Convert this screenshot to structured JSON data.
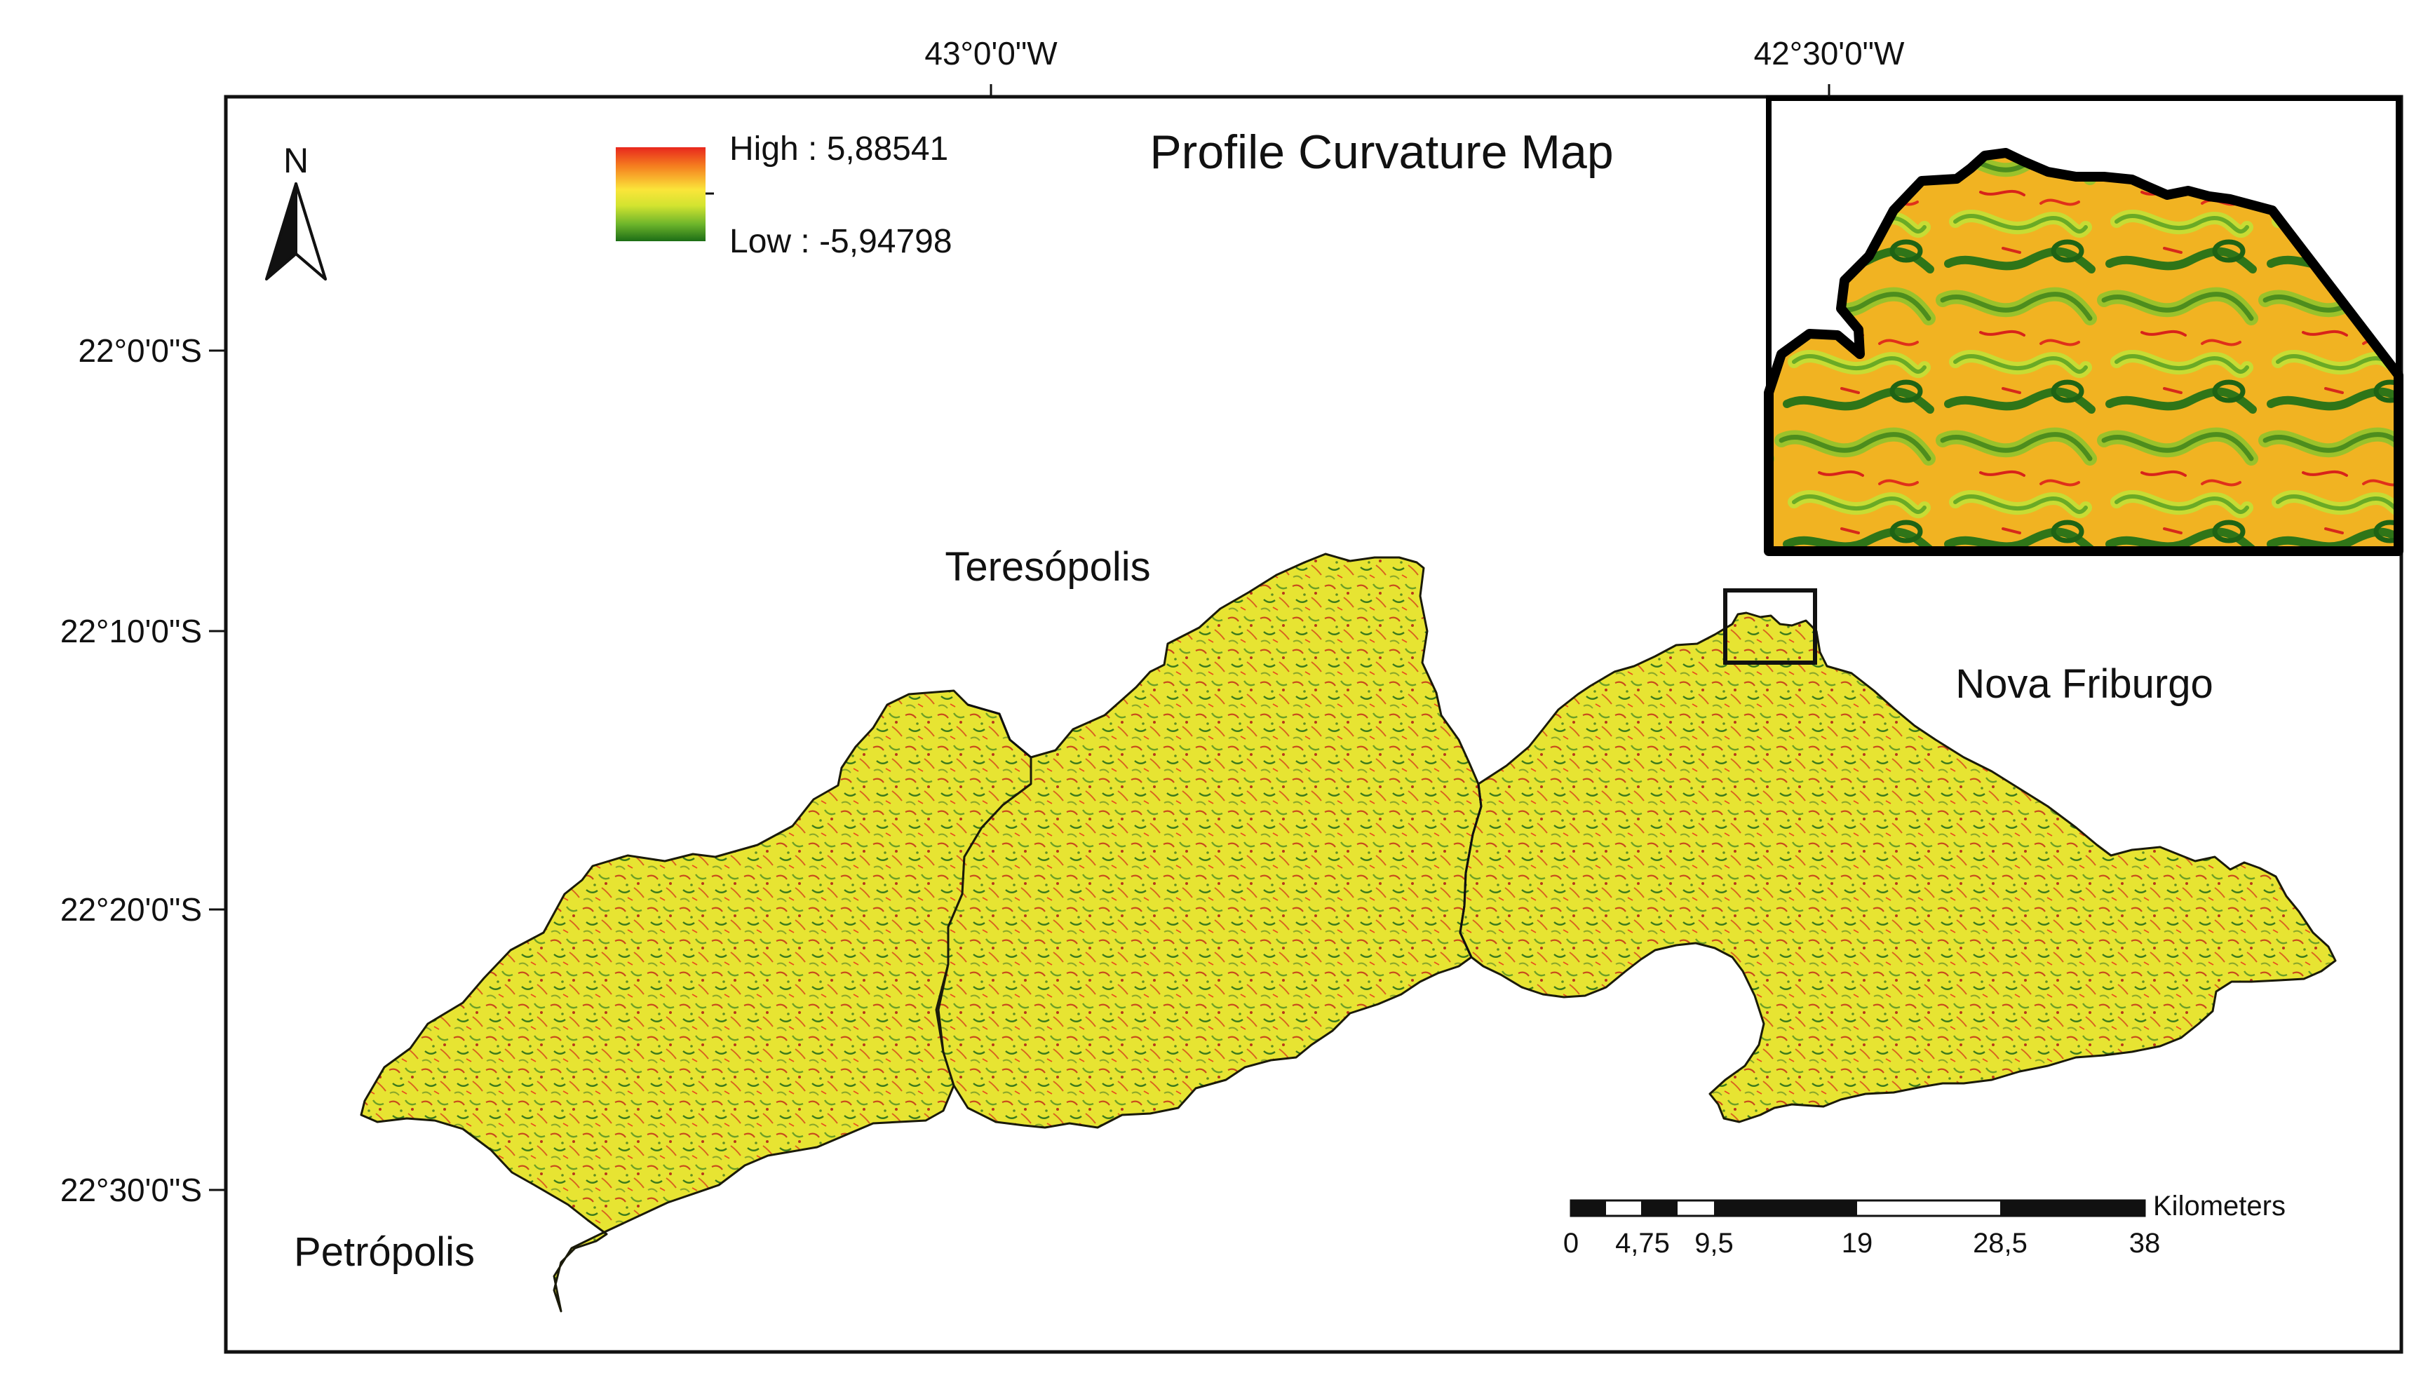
{
  "title": "Profile Curvature Map",
  "north_arrow": {
    "label": "N",
    "icon": "north-arrow-icon"
  },
  "legend": {
    "high_label": "High : 5,88541",
    "low_label": "Low : -5,94798",
    "colors": [
      "#e8271d",
      "#f57e1f",
      "#fbe53a",
      "#d3e430",
      "#6db52b",
      "#1c6d16"
    ]
  },
  "graticule": {
    "longitudes": [
      "43°0'0\"W",
      "42°30'0\"W"
    ],
    "latitudes": [
      "22°0'0\"S",
      "22°10'0\"S",
      "22°20'0\"S",
      "22°30'0\"S"
    ]
  },
  "regions": [
    {
      "name": "Petrópolis"
    },
    {
      "name": "Teresópolis"
    },
    {
      "name": "Nova Friburgo"
    }
  ],
  "scale_bar": {
    "unit": "Kilometers",
    "ticks": [
      "0",
      "4,75",
      "9,5",
      "19",
      "28,5",
      "38"
    ]
  },
  "colors": {
    "fill_base": "#e7e432",
    "border": "#111111",
    "background": "#ffffff"
  }
}
